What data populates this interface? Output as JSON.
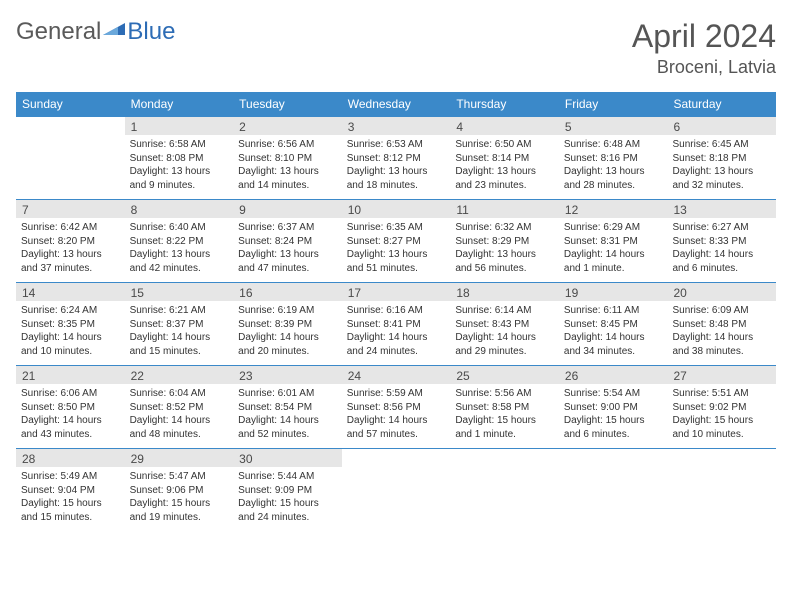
{
  "logo": {
    "text_general": "General",
    "text_blue": "Blue",
    "triangle_color": "#2d6cb5"
  },
  "title": {
    "month": "April 2024",
    "location": "Broceni, Latvia"
  },
  "colors": {
    "header_bg": "#3b89c9",
    "header_text": "#ffffff",
    "daynum_bg": "#e6e6e6",
    "daynum_text": "#4a4a4a",
    "body_text": "#333333",
    "rule": "#3b89c9",
    "title_text": "#555555"
  },
  "day_headers": [
    "Sunday",
    "Monday",
    "Tuesday",
    "Wednesday",
    "Thursday",
    "Friday",
    "Saturday"
  ],
  "weeks": [
    [
      {
        "num": "",
        "sunrise": "",
        "sunset": "",
        "daylight": ""
      },
      {
        "num": "1",
        "sunrise": "6:58 AM",
        "sunset": "8:08 PM",
        "daylight": "13 hours and 9 minutes."
      },
      {
        "num": "2",
        "sunrise": "6:56 AM",
        "sunset": "8:10 PM",
        "daylight": "13 hours and 14 minutes."
      },
      {
        "num": "3",
        "sunrise": "6:53 AM",
        "sunset": "8:12 PM",
        "daylight": "13 hours and 18 minutes."
      },
      {
        "num": "4",
        "sunrise": "6:50 AM",
        "sunset": "8:14 PM",
        "daylight": "13 hours and 23 minutes."
      },
      {
        "num": "5",
        "sunrise": "6:48 AM",
        "sunset": "8:16 PM",
        "daylight": "13 hours and 28 minutes."
      },
      {
        "num": "6",
        "sunrise": "6:45 AM",
        "sunset": "8:18 PM",
        "daylight": "13 hours and 32 minutes."
      }
    ],
    [
      {
        "num": "7",
        "sunrise": "6:42 AM",
        "sunset": "8:20 PM",
        "daylight": "13 hours and 37 minutes."
      },
      {
        "num": "8",
        "sunrise": "6:40 AM",
        "sunset": "8:22 PM",
        "daylight": "13 hours and 42 minutes."
      },
      {
        "num": "9",
        "sunrise": "6:37 AM",
        "sunset": "8:24 PM",
        "daylight": "13 hours and 47 minutes."
      },
      {
        "num": "10",
        "sunrise": "6:35 AM",
        "sunset": "8:27 PM",
        "daylight": "13 hours and 51 minutes."
      },
      {
        "num": "11",
        "sunrise": "6:32 AM",
        "sunset": "8:29 PM",
        "daylight": "13 hours and 56 minutes."
      },
      {
        "num": "12",
        "sunrise": "6:29 AM",
        "sunset": "8:31 PM",
        "daylight": "14 hours and 1 minute."
      },
      {
        "num": "13",
        "sunrise": "6:27 AM",
        "sunset": "8:33 PM",
        "daylight": "14 hours and 6 minutes."
      }
    ],
    [
      {
        "num": "14",
        "sunrise": "6:24 AM",
        "sunset": "8:35 PM",
        "daylight": "14 hours and 10 minutes."
      },
      {
        "num": "15",
        "sunrise": "6:21 AM",
        "sunset": "8:37 PM",
        "daylight": "14 hours and 15 minutes."
      },
      {
        "num": "16",
        "sunrise": "6:19 AM",
        "sunset": "8:39 PM",
        "daylight": "14 hours and 20 minutes."
      },
      {
        "num": "17",
        "sunrise": "6:16 AM",
        "sunset": "8:41 PM",
        "daylight": "14 hours and 24 minutes."
      },
      {
        "num": "18",
        "sunrise": "6:14 AM",
        "sunset": "8:43 PM",
        "daylight": "14 hours and 29 minutes."
      },
      {
        "num": "19",
        "sunrise": "6:11 AM",
        "sunset": "8:45 PM",
        "daylight": "14 hours and 34 minutes."
      },
      {
        "num": "20",
        "sunrise": "6:09 AM",
        "sunset": "8:48 PM",
        "daylight": "14 hours and 38 minutes."
      }
    ],
    [
      {
        "num": "21",
        "sunrise": "6:06 AM",
        "sunset": "8:50 PM",
        "daylight": "14 hours and 43 minutes."
      },
      {
        "num": "22",
        "sunrise": "6:04 AM",
        "sunset": "8:52 PM",
        "daylight": "14 hours and 48 minutes."
      },
      {
        "num": "23",
        "sunrise": "6:01 AM",
        "sunset": "8:54 PM",
        "daylight": "14 hours and 52 minutes."
      },
      {
        "num": "24",
        "sunrise": "5:59 AM",
        "sunset": "8:56 PM",
        "daylight": "14 hours and 57 minutes."
      },
      {
        "num": "25",
        "sunrise": "5:56 AM",
        "sunset": "8:58 PM",
        "daylight": "15 hours and 1 minute."
      },
      {
        "num": "26",
        "sunrise": "5:54 AM",
        "sunset": "9:00 PM",
        "daylight": "15 hours and 6 minutes."
      },
      {
        "num": "27",
        "sunrise": "5:51 AM",
        "sunset": "9:02 PM",
        "daylight": "15 hours and 10 minutes."
      }
    ],
    [
      {
        "num": "28",
        "sunrise": "5:49 AM",
        "sunset": "9:04 PM",
        "daylight": "15 hours and 15 minutes."
      },
      {
        "num": "29",
        "sunrise": "5:47 AM",
        "sunset": "9:06 PM",
        "daylight": "15 hours and 19 minutes."
      },
      {
        "num": "30",
        "sunrise": "5:44 AM",
        "sunset": "9:09 PM",
        "daylight": "15 hours and 24 minutes."
      },
      {
        "num": "",
        "sunrise": "",
        "sunset": "",
        "daylight": ""
      },
      {
        "num": "",
        "sunrise": "",
        "sunset": "",
        "daylight": ""
      },
      {
        "num": "",
        "sunrise": "",
        "sunset": "",
        "daylight": ""
      },
      {
        "num": "",
        "sunrise": "",
        "sunset": "",
        "daylight": ""
      }
    ]
  ],
  "labels": {
    "sunrise_prefix": "Sunrise: ",
    "sunset_prefix": "Sunset: ",
    "daylight_prefix": "Daylight: "
  }
}
